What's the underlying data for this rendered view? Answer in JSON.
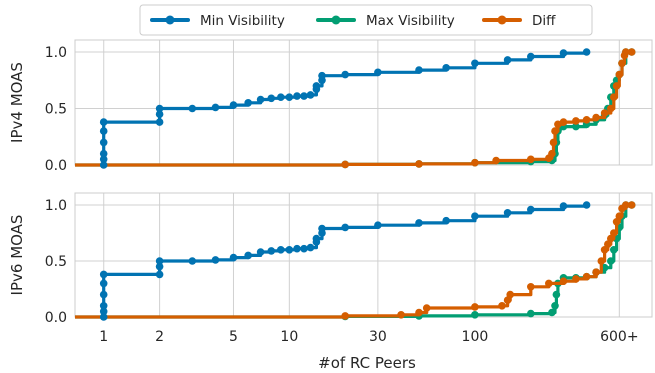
{
  "colors": {
    "min": "#0173b2",
    "max": "#029e73",
    "diff": "#d55e00",
    "grid": "#d0d0d0",
    "frame": "#cccccc"
  },
  "legend": {
    "items": [
      {
        "key": "min",
        "label": "Min Visibility"
      },
      {
        "key": "max",
        "label": "Max Visibility"
      },
      {
        "key": "diff",
        "label": "Diff"
      }
    ]
  },
  "chart_data": [
    {
      "type": "line",
      "ylabel": "IPv4 MOAS",
      "xscale": "log",
      "xlim": [
        0.7,
        900
      ],
      "ylim": [
        0,
        1.0
      ],
      "yticks": [
        0.0,
        0.5,
        1.0
      ],
      "ytick_labels": [
        "0.0",
        "0.5",
        "1.0"
      ],
      "grid": true,
      "series": [
        {
          "name": "Min Visibility",
          "key": "min",
          "x": [
            1,
            1,
            1,
            1,
            1,
            1,
            2,
            2,
            2,
            3,
            4,
            5,
            6,
            7,
            8,
            9,
            10,
            11,
            12,
            13,
            14,
            14,
            15,
            15,
            20,
            30,
            50,
            70,
            100,
            150,
            200,
            300,
            400
          ],
          "y": [
            0.0,
            0.05,
            0.1,
            0.2,
            0.3,
            0.38,
            0.38,
            0.45,
            0.5,
            0.5,
            0.51,
            0.53,
            0.55,
            0.58,
            0.59,
            0.6,
            0.6,
            0.61,
            0.61,
            0.62,
            0.67,
            0.7,
            0.75,
            0.79,
            0.8,
            0.82,
            0.84,
            0.86,
            0.9,
            0.93,
            0.96,
            0.99,
            1.0
          ]
        },
        {
          "name": "Max Visibility",
          "key": "max",
          "x": [
            0.7,
            20,
            50,
            100,
            200,
            260,
            270,
            275,
            280,
            285,
            300,
            350,
            400,
            450,
            500,
            520,
            540,
            560,
            580,
            600,
            620,
            650,
            700
          ],
          "y": [
            0.0,
            0.005,
            0.01,
            0.02,
            0.03,
            0.04,
            0.1,
            0.2,
            0.3,
            0.33,
            0.34,
            0.34,
            0.36,
            0.4,
            0.44,
            0.5,
            0.6,
            0.7,
            0.75,
            0.8,
            0.9,
            1.0,
            1.0
          ]
        },
        {
          "name": "Diff",
          "key": "diff",
          "x": [
            0.7,
            20,
            50,
            100,
            130,
            200,
            250,
            260,
            265,
            270,
            280,
            300,
            350,
            400,
            450,
            500,
            540,
            560,
            580,
            600,
            620,
            640,
            650,
            700
          ],
          "y": [
            0.0,
            0.005,
            0.01,
            0.02,
            0.04,
            0.05,
            0.06,
            0.1,
            0.2,
            0.3,
            0.36,
            0.38,
            0.39,
            0.4,
            0.42,
            0.46,
            0.5,
            0.6,
            0.7,
            0.8,
            0.9,
            0.97,
            1.0,
            1.0
          ]
        }
      ]
    },
    {
      "type": "line",
      "ylabel": "IPv6 MOAS",
      "xlabel": "#of RC Peers",
      "xscale": "log",
      "xlim": [
        0.7,
        900
      ],
      "ylim": [
        0,
        1.0
      ],
      "yticks": [
        0.0,
        0.5,
        1.0
      ],
      "ytick_labels": [
        "0.0",
        "0.5",
        "1.0"
      ],
      "xticks": [
        1,
        2,
        5,
        10,
        30,
        100,
        600
      ],
      "xtick_labels": [
        "1",
        "2",
        "5",
        "10",
        "30",
        "100",
        "600+"
      ],
      "grid": true,
      "series": [
        {
          "name": "Min Visibility",
          "key": "min",
          "x": [
            1,
            1,
            1,
            1,
            1,
            1,
            2,
            2,
            2,
            3,
            4,
            5,
            6,
            7,
            8,
            9,
            10,
            11,
            12,
            13,
            14,
            14,
            15,
            15,
            20,
            30,
            50,
            70,
            100,
            150,
            200,
            300,
            400
          ],
          "y": [
            0.0,
            0.05,
            0.1,
            0.2,
            0.3,
            0.38,
            0.38,
            0.45,
            0.5,
            0.5,
            0.51,
            0.53,
            0.55,
            0.58,
            0.59,
            0.6,
            0.6,
            0.61,
            0.61,
            0.62,
            0.67,
            0.7,
            0.75,
            0.79,
            0.8,
            0.82,
            0.84,
            0.86,
            0.9,
            0.93,
            0.96,
            0.99,
            1.0
          ]
        },
        {
          "name": "Max Visibility",
          "key": "max",
          "x": [
            0.7,
            20,
            50,
            100,
            200,
            260,
            270,
            275,
            280,
            300,
            350,
            400,
            450,
            500,
            540,
            560,
            580,
            600,
            620,
            650,
            700
          ],
          "y": [
            0.0,
            0.005,
            0.01,
            0.02,
            0.03,
            0.04,
            0.1,
            0.2,
            0.3,
            0.35,
            0.35,
            0.36,
            0.4,
            0.44,
            0.5,
            0.6,
            0.7,
            0.8,
            0.9,
            1.0,
            1.0
          ]
        },
        {
          "name": "Diff",
          "key": "diff",
          "x": [
            0.7,
            20,
            40,
            50,
            55,
            100,
            140,
            150,
            155,
            200,
            250,
            300,
            350,
            400,
            450,
            480,
            500,
            520,
            540,
            560,
            580,
            600,
            620,
            650,
            700
          ],
          "y": [
            0.0,
            0.01,
            0.02,
            0.04,
            0.08,
            0.09,
            0.1,
            0.15,
            0.2,
            0.27,
            0.3,
            0.32,
            0.34,
            0.36,
            0.4,
            0.5,
            0.6,
            0.65,
            0.7,
            0.75,
            0.85,
            0.9,
            0.97,
            1.0,
            1.0
          ]
        }
      ]
    }
  ]
}
